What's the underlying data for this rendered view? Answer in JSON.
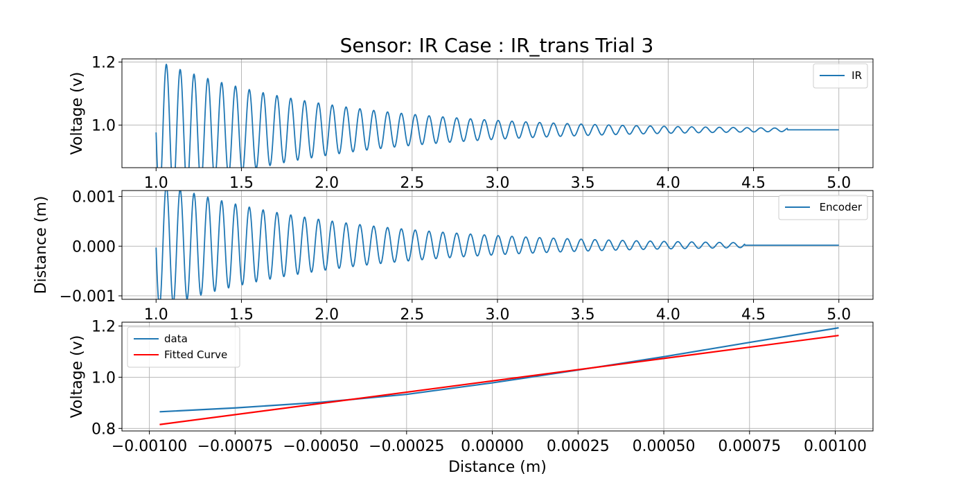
{
  "title": "Sensor: IR Case : IR_trans Trial 3",
  "colors": {
    "blue": "#1f77b4",
    "red": "#ff0000",
    "grid": "#b0b0b0"
  },
  "chart_data": [
    {
      "type": "line",
      "ylabel": "Voltage (v)",
      "xlabel": "",
      "xlim": [
        0.8,
        5.2
      ],
      "ylim": [
        0.865,
        1.21
      ],
      "xticks": [
        1.0,
        1.5,
        2.0,
        2.5,
        3.0,
        3.5,
        4.0,
        4.5,
        5.0
      ],
      "xtick_labels": [
        "1.0",
        "1.5",
        "2.0",
        "2.5",
        "3.0",
        "3.5",
        "4.0",
        "4.5",
        "5.0"
      ],
      "yticks": [
        1.0,
        1.2
      ],
      "ytick_labels": [
        "1.0",
        "1.2"
      ],
      "grid": true,
      "legend": "top-right",
      "series": [
        {
          "name": "IR",
          "color": "#1f77b4",
          "signal": {
            "kind": "damped_sine",
            "t_start": 1.0,
            "t_end": 5.0,
            "baseline": 0.985,
            "amplitude": 0.21,
            "phase_shift": 1.04,
            "period": 0.081,
            "decay_rate": 1.0,
            "settle_time": 4.7
          }
        }
      ]
    },
    {
      "type": "line",
      "ylabel": "Distance (m)",
      "xlabel": "",
      "xlim": [
        0.8,
        5.2
      ],
      "ylim": [
        -0.00107,
        0.00112
      ],
      "xticks": [
        1.0,
        1.5,
        2.0,
        2.5,
        3.0,
        3.5,
        4.0,
        4.5,
        5.0
      ],
      "xtick_labels": [
        "1.0",
        "1.5",
        "2.0",
        "2.5",
        "3.0",
        "3.5",
        "4.0",
        "4.5",
        "5.0"
      ],
      "yticks": [
        -0.001,
        0.0,
        0.001
      ],
      "ytick_labels": [
        "−0.001",
        "0.000",
        "0.001"
      ],
      "grid": true,
      "legend": "top-right",
      "series": [
        {
          "name": "Encoder",
          "color": "#1f77b4",
          "signal": {
            "kind": "damped_sine",
            "t_start": 1.0,
            "t_end": 5.0,
            "baseline": 2e-05,
            "amplitude": 0.00123,
            "phase_shift": 1.04,
            "period": 0.081,
            "decay_rate": 0.95,
            "settle_time": 4.45
          }
        }
      ]
    },
    {
      "type": "line",
      "ylabel": "Voltage (v)",
      "xlabel": "Distance (m)",
      "xlim": [
        -0.00108,
        0.00111
      ],
      "ylim": [
        0.79,
        1.215
      ],
      "xticks": [
        -0.001,
        -0.00075,
        -0.0005,
        -0.00025,
        0.0,
        0.00025,
        0.0005,
        0.00075,
        0.001
      ],
      "xtick_labels": [
        "−0.00100",
        "−0.00075",
        "−0.00050",
        "−0.00025",
        "0.00000",
        "0.00025",
        "0.00050",
        "0.00075",
        "0.00100"
      ],
      "yticks": [
        0.8,
        1.0,
        1.2
      ],
      "ytick_labels": [
        "0.8",
        "1.0",
        "1.2"
      ],
      "grid": true,
      "legend": "top-left",
      "series": [
        {
          "name": "data",
          "color": "#1f77b4",
          "points": [
            [
              -0.00097,
              0.865
            ],
            [
              -0.00075,
              0.88
            ],
            [
              -0.0005,
              0.902
            ],
            [
              -0.00025,
              0.933
            ],
            [
              0.0,
              0.978
            ],
            [
              0.00025,
              1.028
            ],
            [
              0.0005,
              1.08
            ],
            [
              0.00075,
              1.136
            ],
            [
              0.00101,
              1.193
            ]
          ]
        },
        {
          "name": "Fitted Curve",
          "color": "#ff0000",
          "points": [
            [
              -0.00097,
              0.815
            ],
            [
              0.00101,
              1.163
            ]
          ]
        }
      ]
    }
  ]
}
